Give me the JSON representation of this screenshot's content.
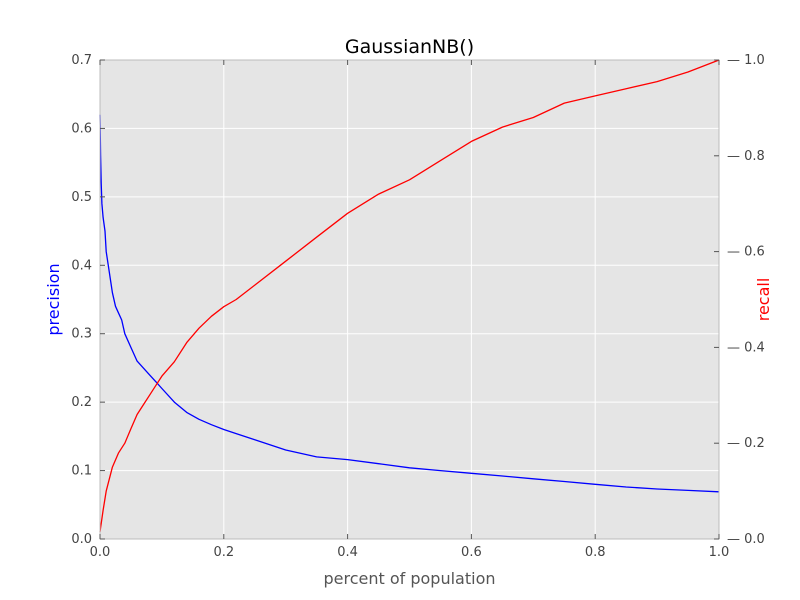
{
  "chart_data": {
    "type": "line",
    "title": "GaussianNB()",
    "xlabel": "percent of population",
    "ylabel_left": "precision",
    "ylabel_right": "recall",
    "xlim": [
      0.0,
      1.0
    ],
    "ylim_left": [
      0.0,
      0.7
    ],
    "ylim_right": [
      0.0,
      1.0
    ],
    "x_ticks": [
      "0.0",
      "0.2",
      "0.4",
      "0.6",
      "0.8",
      "1.0"
    ],
    "y_ticks_left": [
      "0.0",
      "0.1",
      "0.2",
      "0.3",
      "0.4",
      "0.5",
      "0.6",
      "0.7"
    ],
    "y_ticks_right": [
      "0.0",
      "0.2",
      "0.4",
      "0.6",
      "0.8",
      "1.0"
    ],
    "grid": true,
    "background_color": "#e5e5e5",
    "series": [
      {
        "name": "precision",
        "axis": "left",
        "color": "#0000ff",
        "x": [
          0.0,
          0.001,
          0.002,
          0.003,
          0.005,
          0.008,
          0.01,
          0.015,
          0.02,
          0.025,
          0.03,
          0.035,
          0.04,
          0.05,
          0.06,
          0.07,
          0.08,
          0.09,
          0.1,
          0.12,
          0.14,
          0.16,
          0.18,
          0.2,
          0.22,
          0.25,
          0.3,
          0.35,
          0.4,
          0.45,
          0.5,
          0.55,
          0.6,
          0.65,
          0.7,
          0.75,
          0.8,
          0.85,
          0.9,
          0.95,
          1.0
        ],
        "values": [
          0.62,
          0.56,
          0.52,
          0.49,
          0.47,
          0.45,
          0.42,
          0.39,
          0.36,
          0.34,
          0.33,
          0.32,
          0.3,
          0.28,
          0.26,
          0.25,
          0.24,
          0.23,
          0.22,
          0.2,
          0.185,
          0.175,
          0.167,
          0.16,
          0.154,
          0.145,
          0.13,
          0.12,
          0.116,
          0.11,
          0.104,
          0.1,
          0.096,
          0.092,
          0.088,
          0.084,
          0.08,
          0.076,
          0.073,
          0.071,
          0.069
        ]
      },
      {
        "name": "recall",
        "axis": "right",
        "color": "#ff0000",
        "x": [
          0.0,
          0.005,
          0.01,
          0.02,
          0.03,
          0.04,
          0.05,
          0.06,
          0.07,
          0.08,
          0.09,
          0.1,
          0.12,
          0.14,
          0.16,
          0.18,
          0.2,
          0.22,
          0.25,
          0.3,
          0.35,
          0.4,
          0.45,
          0.5,
          0.55,
          0.6,
          0.65,
          0.7,
          0.75,
          0.8,
          0.85,
          0.9,
          0.95,
          1.0
        ],
        "values": [
          0.015,
          0.06,
          0.1,
          0.15,
          0.18,
          0.2,
          0.23,
          0.26,
          0.28,
          0.3,
          0.32,
          0.34,
          0.37,
          0.41,
          0.44,
          0.465,
          0.485,
          0.5,
          0.53,
          0.58,
          0.63,
          0.68,
          0.72,
          0.75,
          0.79,
          0.83,
          0.86,
          0.88,
          0.91,
          0.925,
          0.94,
          0.955,
          0.975,
          1.0
        ]
      }
    ]
  }
}
